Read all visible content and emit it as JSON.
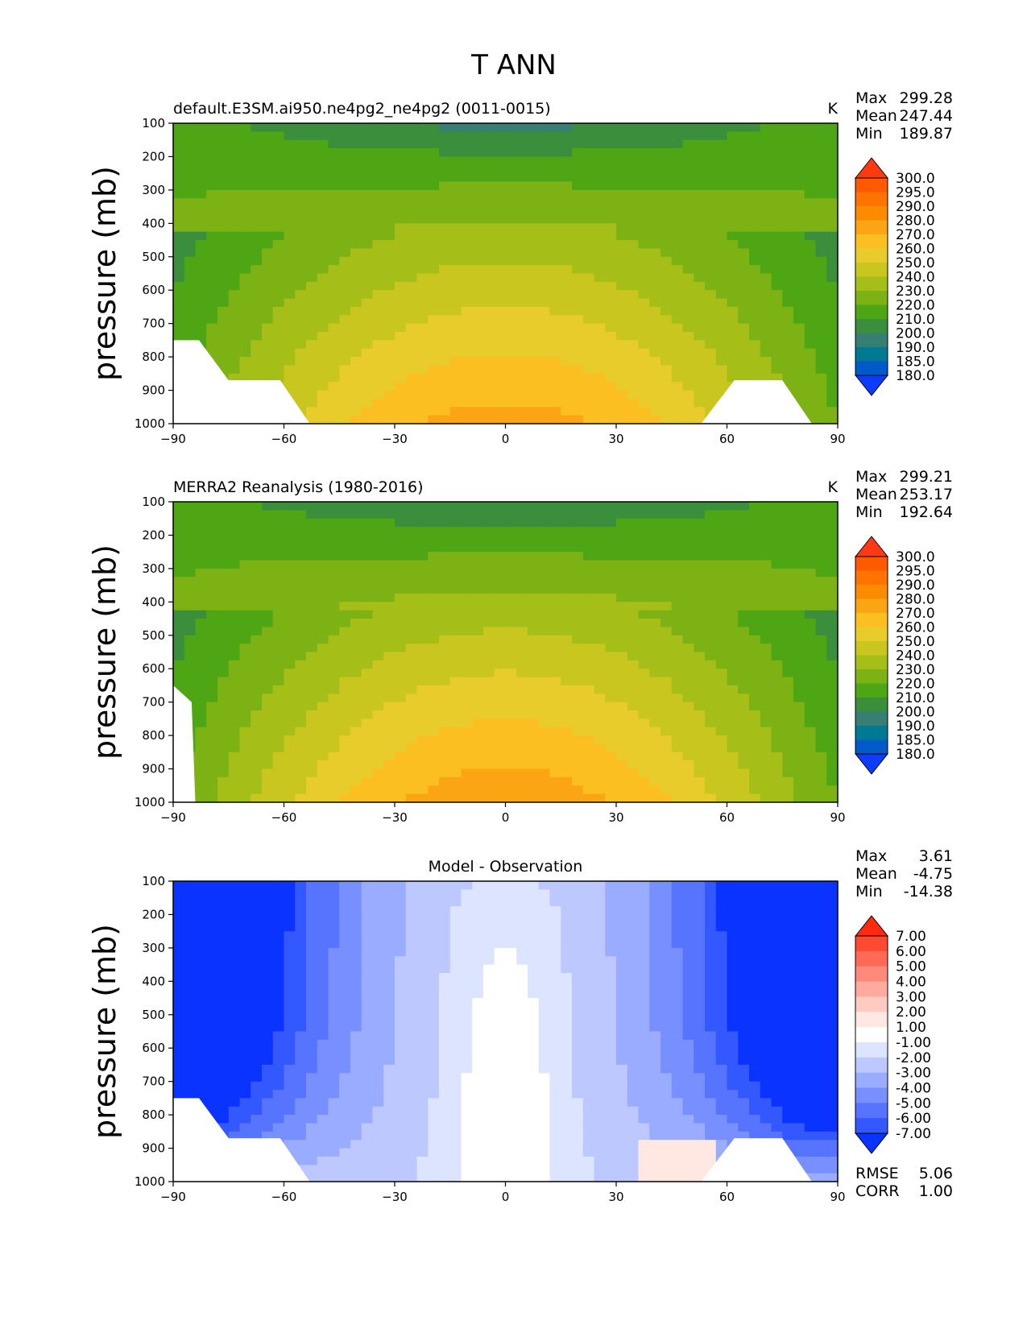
{
  "figure_title": "T ANN",
  "chart_data": [
    {
      "type": "heatmap",
      "title": "default.E3SM.ai950.ne4pg2_ne4pg2 (0011-0015)",
      "units": "K",
      "ylabel": "pressure (mb)",
      "xlim": [
        -90,
        90
      ],
      "ylim": [
        1000,
        100
      ],
      "xticks": [
        -90,
        -60,
        -30,
        0,
        30,
        60,
        90
      ],
      "yticks": [
        100,
        200,
        300,
        400,
        500,
        600,
        700,
        800,
        900,
        1000
      ],
      "stats": [
        {
          "label": "Max",
          "value": "299.28"
        },
        {
          "label": "Mean",
          "value": "247.44"
        },
        {
          "label": "Min",
          "value": "189.87"
        }
      ],
      "colorbar": {
        "levels": [
          "300.0",
          "295.0",
          "290.0",
          "280.0",
          "270.0",
          "260.0",
          "250.0",
          "240.0",
          "230.0",
          "220.0",
          "210.0",
          "200.0",
          "190.0",
          "185.0",
          "180.0"
        ],
        "colors": [
          "#ff3a12",
          "#ff5a00",
          "#ff7300",
          "#fb8c00",
          "#fba414",
          "#fbbf22",
          "#e8cc2c",
          "#c9c620",
          "#a6be18",
          "#7db214",
          "#4ea614",
          "#3a8e3c",
          "#367f72",
          "#007a92",
          "#005ac8",
          "#0b3cff"
        ]
      },
      "field_model": "temperature",
      "missing_regions": [
        {
          "lat": [
            -90,
            -83,
            -75,
            -61,
            -53
          ],
          "p": [
            750,
            750,
            870,
            870,
            1000
          ]
        },
        {
          "lat": [
            53,
            62,
            75,
            83
          ],
          "p": [
            1000,
            870,
            870,
            1000
          ]
        }
      ]
    },
    {
      "type": "heatmap",
      "title": "MERRA2 Reanalysis (1980-2016)",
      "units": "K",
      "ylabel": "pressure (mb)",
      "xlim": [
        -90,
        90
      ],
      "ylim": [
        1000,
        100
      ],
      "xticks": [
        -90,
        -60,
        -30,
        0,
        30,
        60,
        90
      ],
      "yticks": [
        100,
        200,
        300,
        400,
        500,
        600,
        700,
        800,
        900,
        1000
      ],
      "stats": [
        {
          "label": "Max",
          "value": "299.21"
        },
        {
          "label": "Mean",
          "value": "253.17"
        },
        {
          "label": "Min",
          "value": "192.64"
        }
      ],
      "colorbar": {
        "levels": [
          "300.0",
          "295.0",
          "290.0",
          "280.0",
          "270.0",
          "260.0",
          "250.0",
          "240.0",
          "230.0",
          "220.0",
          "210.0",
          "200.0",
          "190.0",
          "185.0",
          "180.0"
        ],
        "colors": [
          "#ff3a12",
          "#ff5a00",
          "#ff7300",
          "#fb8c00",
          "#fba414",
          "#fbbf22",
          "#e8cc2c",
          "#c9c620",
          "#a6be18",
          "#7db214",
          "#4ea614",
          "#3a8e3c",
          "#367f72",
          "#007a92",
          "#005ac8",
          "#0b3cff"
        ]
      },
      "field_model": "temperature",
      "missing_regions": [
        {
          "lat": [
            -90,
            -90,
            -85,
            -84
          ],
          "p": [
            1000,
            650,
            700,
            1000
          ]
        }
      ]
    },
    {
      "type": "heatmap",
      "title": "Model - Observation",
      "units": "",
      "ylabel": "pressure (mb)",
      "xlim": [
        -90,
        90
      ],
      "ylim": [
        1000,
        100
      ],
      "xticks": [
        -90,
        -60,
        -30,
        0,
        30,
        60,
        90
      ],
      "yticks": [
        100,
        200,
        300,
        400,
        500,
        600,
        700,
        800,
        900,
        1000
      ],
      "stats": [
        {
          "label": "Max",
          "value": "3.61"
        },
        {
          "label": "Mean",
          "value": "-4.75"
        },
        {
          "label": "Min",
          "value": "-14.38"
        }
      ],
      "extra_stats": [
        {
          "label": "RMSE",
          "value": "5.06"
        },
        {
          "label": "CORR",
          "value": "1.00"
        }
      ],
      "colorbar": {
        "levels": [
          "7.00",
          "6.00",
          "5.00",
          "4.00",
          "3.00",
          "2.00",
          "1.00",
          "-1.00",
          "-2.00",
          "-3.00",
          "-4.00",
          "-5.00",
          "-6.00",
          "-7.00"
        ],
        "colors": [
          "#ff2a10",
          "#ff4a32",
          "#ff6a56",
          "#ff8a7c",
          "#ffaa9e",
          "#ffcac0",
          "#ffe8e2",
          "#ffffff",
          "#dde4ff",
          "#bcc8ff",
          "#9aacff",
          "#7890ff",
          "#5674ff",
          "#3458ff",
          "#0a33ff"
        ]
      },
      "field_model": "difference",
      "missing_regions": [
        {
          "lat": [
            -90,
            -83,
            -75,
            -61,
            -53
          ],
          "p": [
            750,
            750,
            870,
            870,
            1000
          ]
        },
        {
          "lat": [
            53,
            62,
            75,
            83
          ],
          "p": [
            1000,
            870,
            870,
            1000
          ]
        }
      ]
    }
  ]
}
